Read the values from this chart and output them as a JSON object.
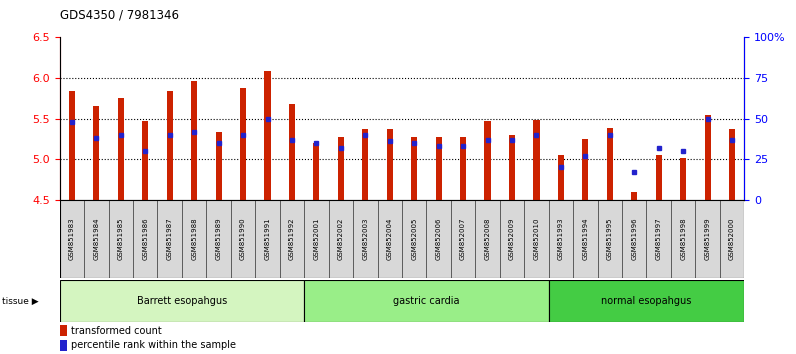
{
  "title": "GDS4350 / 7981346",
  "samples": [
    "GSM851983",
    "GSM851984",
    "GSM851985",
    "GSM851986",
    "GSM851987",
    "GSM851988",
    "GSM851989",
    "GSM851990",
    "GSM851991",
    "GSM851992",
    "GSM852001",
    "GSM852002",
    "GSM852003",
    "GSM852004",
    "GSM852005",
    "GSM852006",
    "GSM852007",
    "GSM852008",
    "GSM852009",
    "GSM852010",
    "GSM851993",
    "GSM851994",
    "GSM851995",
    "GSM851996",
    "GSM851997",
    "GSM851998",
    "GSM851999",
    "GSM852000"
  ],
  "red_values": [
    5.84,
    5.65,
    5.75,
    5.47,
    5.84,
    5.96,
    5.33,
    5.87,
    6.08,
    5.68,
    5.2,
    5.28,
    5.37,
    5.37,
    5.28,
    5.27,
    5.27,
    5.47,
    5.3,
    5.48,
    5.05,
    5.25,
    5.38,
    4.6,
    5.05,
    5.01,
    5.55,
    5.37
  ],
  "blue_values": [
    48,
    38,
    40,
    30,
    40,
    42,
    35,
    40,
    50,
    37,
    35,
    32,
    40,
    36,
    35,
    33,
    33,
    37,
    37,
    40,
    20,
    27,
    40,
    17,
    32,
    30,
    50,
    37
  ],
  "groups": [
    {
      "label": "Barrett esopahgus",
      "start": 0,
      "end": 10,
      "color": "#d4f5c0"
    },
    {
      "label": "gastric cardia",
      "start": 10,
      "end": 20,
      "color": "#99ee88"
    },
    {
      "label": "normal esopahgus",
      "start": 20,
      "end": 28,
      "color": "#44cc44"
    }
  ],
  "ylim_left": [
    4.5,
    6.5
  ],
  "ylim_right": [
    0,
    100
  ],
  "yticks_left": [
    4.5,
    5.0,
    5.5,
    6.0,
    6.5
  ],
  "yticks_right": [
    0,
    25,
    50,
    75,
    100
  ],
  "ytick_labels_right": [
    "0",
    "25",
    "50",
    "75",
    "100%"
  ],
  "bar_color": "#cc2200",
  "blue_color": "#2222cc",
  "bar_width": 0.25,
  "background_color": "#ffffff"
}
